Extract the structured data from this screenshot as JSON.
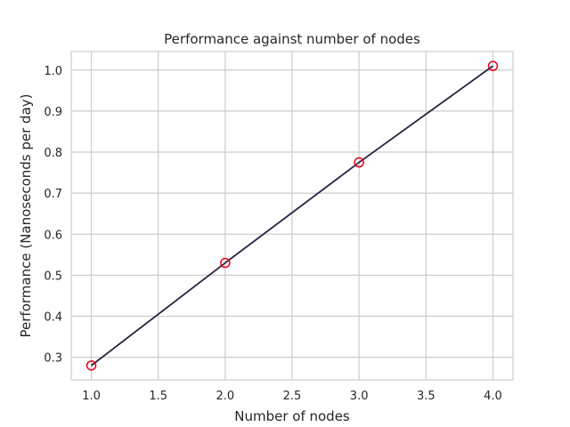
{
  "chart_data": {
    "type": "line",
    "title": "Performance against number of nodes",
    "xlabel": "Number of nodes",
    "ylabel": "Performance (Nanoseconds per day)",
    "x": [
      1.0,
      2.0,
      3.0,
      4.0
    ],
    "series": [
      {
        "values": [
          0.28,
          0.53,
          0.775,
          1.01
        ]
      }
    ],
    "xlim": [
      0.85,
      4.15
    ],
    "ylim": [
      0.245,
      1.045
    ],
    "xticks": [
      1.0,
      1.5,
      2.0,
      2.5,
      3.0,
      3.5,
      4.0
    ],
    "xtick_labels": [
      "1.0",
      "1.5",
      "2.0",
      "2.5",
      "3.0",
      "3.5",
      "4.0"
    ],
    "yticks": [
      0.3,
      0.4,
      0.5,
      0.6,
      0.7,
      0.8,
      0.9,
      1.0
    ],
    "ytick_labels": [
      "0.3",
      "0.4",
      "0.5",
      "0.6",
      "0.7",
      "0.8",
      "0.9",
      "1.0"
    ],
    "grid": true,
    "colors": {
      "line": "#2d1e3e",
      "marker_edge": "#e3001b",
      "grid": "#cccccc",
      "spine": "#cccccc"
    }
  }
}
